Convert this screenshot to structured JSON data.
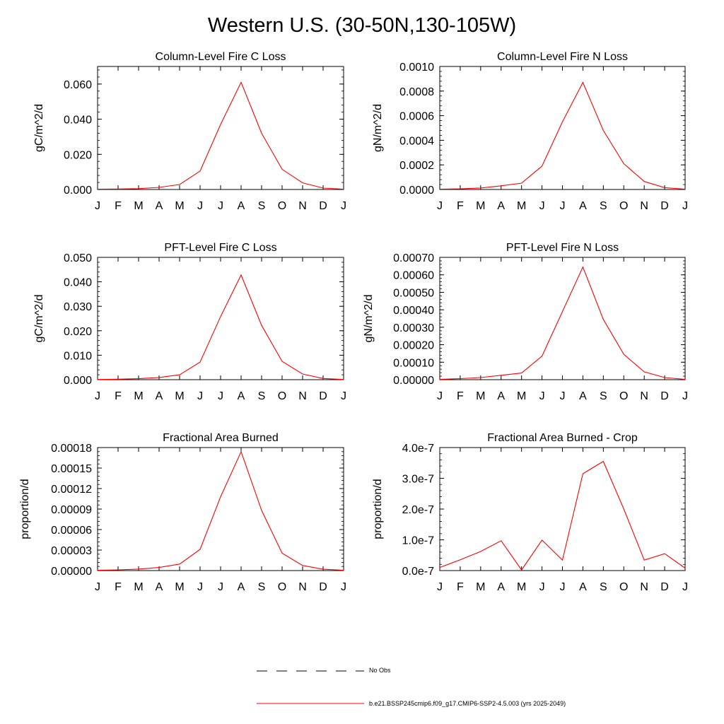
{
  "title": "Western U.S. (30-50N,130-105W)",
  "chart_data": [
    {
      "type": "line",
      "title": "Column-Level Fire C Loss",
      "ylabel": "gC/m^2/d",
      "categories": [
        "J",
        "F",
        "M",
        "A",
        "M",
        "J",
        "J",
        "A",
        "S",
        "O",
        "N",
        "D",
        "J"
      ],
      "ylim": [
        0,
        0.07
      ],
      "yticks": [
        "0.000",
        "0.020",
        "0.040",
        "0.060"
      ],
      "series": [
        {
          "name": "b.e21.BSSP245cmip6.f09_g17.CMIP6-SSP2-4.5.003 (yrs 2025-2049)",
          "values": [
            0.0002,
            0.0003,
            0.0005,
            0.0012,
            0.0028,
            0.0105,
            0.037,
            0.061,
            0.032,
            0.0115,
            0.0038,
            0.0008,
            0.0002
          ]
        }
      ]
    },
    {
      "type": "line",
      "title": "Column-Level Fire N Loss",
      "ylabel": "gN/m^2/d",
      "categories": [
        "J",
        "F",
        "M",
        "A",
        "M",
        "J",
        "J",
        "A",
        "S",
        "O",
        "N",
        "D",
        "J"
      ],
      "ylim": [
        0,
        0.001
      ],
      "yticks": [
        "0.0000",
        "0.0002",
        "0.0004",
        "0.0006",
        "0.0008",
        "0.0010"
      ],
      "series": [
        {
          "name": "b.e21.BSSP245cmip6.f09_g17.CMIP6-SSP2-4.5.003 (yrs 2025-2049)",
          "values": [
            3e-06,
            5e-06,
            1.2e-05,
            3e-05,
            5.2e-05,
            0.00019,
            0.00055,
            0.00087,
            0.00048,
            0.00021,
            6.5e-05,
            1.5e-05,
            3e-06
          ]
        }
      ]
    },
    {
      "type": "line",
      "title": "PFT-Level Fire C Loss",
      "ylabel": "gC/m^2/d",
      "categories": [
        "J",
        "F",
        "M",
        "A",
        "M",
        "J",
        "J",
        "A",
        "S",
        "O",
        "N",
        "D",
        "J"
      ],
      "ylim": [
        0,
        0.05
      ],
      "yticks": [
        "0.000",
        "0.010",
        "0.020",
        "0.030",
        "0.040",
        "0.050"
      ],
      "series": [
        {
          "name": "b.e21.BSSP245cmip6.f09_g17.CMIP6-SSP2-4.5.003 (yrs 2025-2049)",
          "values": [
            0.0001,
            0.0002,
            0.0004,
            0.0009,
            0.002,
            0.0072,
            0.0258,
            0.0428,
            0.0222,
            0.0075,
            0.0023,
            0.0005,
            0.0001
          ]
        }
      ]
    },
    {
      "type": "line",
      "title": "PFT-Level Fire N Loss",
      "ylabel": "gN/m^2/d",
      "categories": [
        "J",
        "F",
        "M",
        "A",
        "M",
        "J",
        "J",
        "A",
        "S",
        "O",
        "N",
        "D",
        "J"
      ],
      "ylim": [
        0,
        0.0007
      ],
      "yticks": [
        "0.00000",
        "0.00010",
        "0.00020",
        "0.00030",
        "0.00040",
        "0.00050",
        "0.00060",
        "0.00070"
      ],
      "series": [
        {
          "name": "b.e21.BSSP245cmip6.f09_g17.CMIP6-SSP2-4.5.003 (yrs 2025-2049)",
          "values": [
            2e-06,
            6e-06,
            1.2e-05,
            2.5e-05,
            3.8e-05,
            0.000135,
            0.00039,
            0.000645,
            0.000345,
            0.000145,
            4.5e-05,
            1.2e-05,
            2e-06
          ]
        }
      ]
    },
    {
      "type": "line",
      "title": "Fractional Area Burned",
      "ylabel": "proportion/d",
      "categories": [
        "J",
        "F",
        "M",
        "A",
        "M",
        "J",
        "J",
        "A",
        "S",
        "O",
        "N",
        "D",
        "J"
      ],
      "ylim": [
        0,
        0.00018
      ],
      "yticks": [
        "0.00000",
        "0.00003",
        "0.00006",
        "0.00009",
        "0.00012",
        "0.00015",
        "0.00018"
      ],
      "series": [
        {
          "name": "b.e21.BSSP245cmip6.f09_g17.CMIP6-SSP2-4.5.003 (yrs 2025-2049)",
          "values": [
            5e-07,
            1e-06,
            2.2e-06,
            4.5e-06,
            9.5e-06,
            3.1e-05,
            0.000108,
            0.000174,
            8.8e-05,
            2.55e-05,
            7.5e-06,
            2e-06,
            5e-07
          ]
        }
      ]
    },
    {
      "type": "line",
      "title": "Fractional Area Burned - Crop",
      "ylabel": "proportion/d",
      "categories": [
        "J",
        "F",
        "M",
        "A",
        "M",
        "J",
        "J",
        "A",
        "S",
        "O",
        "N",
        "D",
        "J"
      ],
      "ylim": [
        0,
        4e-07
      ],
      "yticks": [
        "0.0e-7",
        "1.0e-7",
        "2.0e-7",
        "3.0e-7",
        "4.0e-7"
      ],
      "series": [
        {
          "name": "b.e21.BSSP245cmip6.f09_g17.CMIP6-SSP2-4.5.003 (yrs 2025-2049)",
          "values": [
            1e-08,
            3.5e-08,
            6.2e-08,
            9.7e-08,
            2e-09,
            9.9e-08,
            3.4e-08,
            3.15e-07,
            3.55e-07,
            2e-07,
            3.4e-08,
            5.5e-08,
            8e-09
          ]
        }
      ]
    }
  ],
  "legend": {
    "items": [
      {
        "label": "No Obs",
        "style": "dashed",
        "color": "#000000"
      },
      {
        "label": "b.e21.BSSP245cmip6.f09_g17.CMIP6-SSP2-4.5.003 (yrs 2025-2049)",
        "style": "solid",
        "color": "#ff0000"
      }
    ]
  },
  "colors": {
    "series": "#ff0000",
    "axes": "#000000"
  }
}
